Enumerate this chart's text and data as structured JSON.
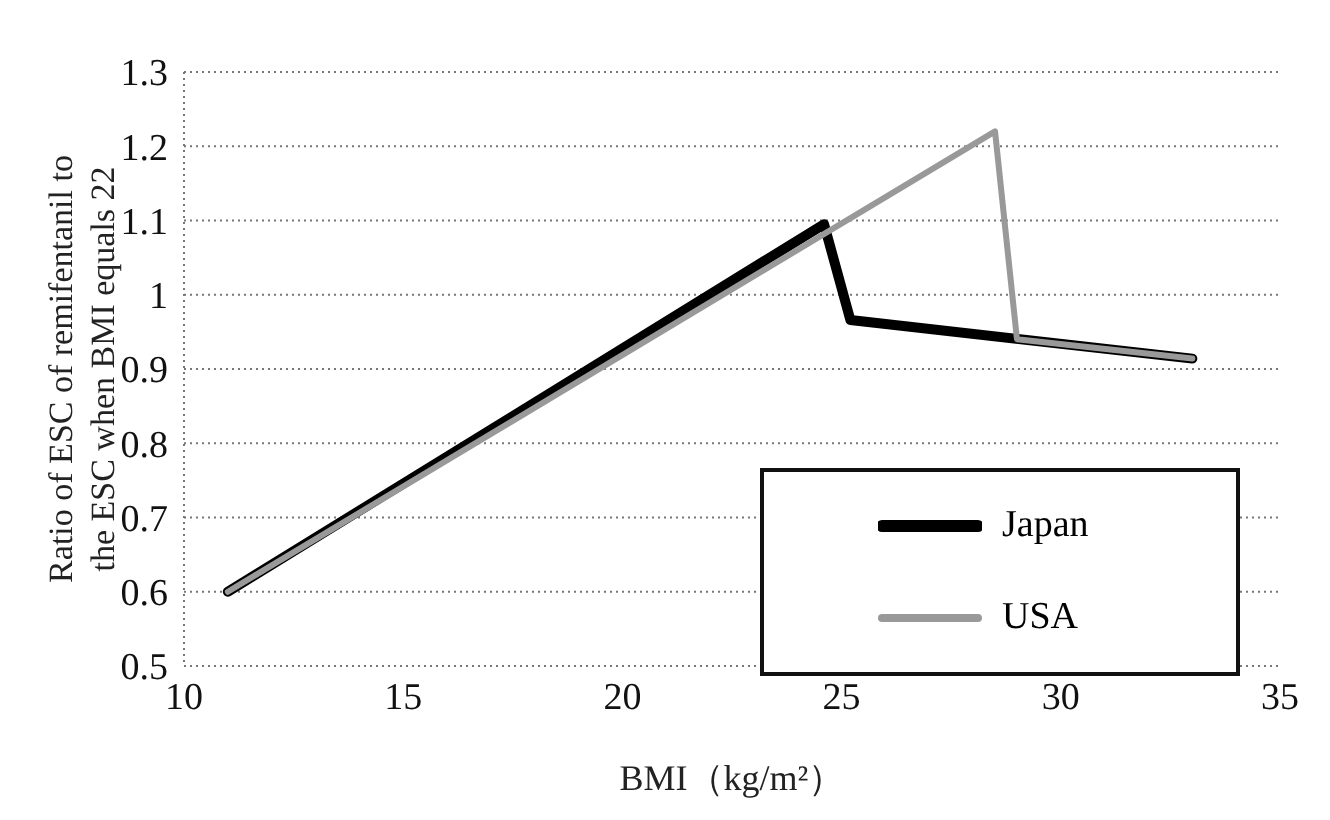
{
  "chart_data": {
    "type": "line",
    "xlabel": "BMI（kg/m²）",
    "ylabel": "Ratio of ESC of remifentanil to the ESC when BMI equals 22",
    "series": [
      {
        "name": "Japan",
        "color": "#000000",
        "x": [
          11,
          24.6,
          25.2,
          33
        ],
        "values": [
          0.6,
          1.095,
          0.966,
          0.914
        ]
      },
      {
        "name": "USA",
        "color": "#999999",
        "x": [
          11,
          28.5,
          29,
          33
        ],
        "values": [
          0.6,
          1.22,
          0.94,
          0.914
        ]
      }
    ],
    "xlim": [
      10,
      35
    ],
    "xticks": [
      10,
      15,
      20,
      25,
      30,
      35
    ],
    "ylim": [
      0.5,
      1.3
    ],
    "yticks": [
      0.5,
      0.6,
      0.7,
      0.8,
      0.9,
      1,
      1.1,
      1.2,
      1.3
    ],
    "grid": "y",
    "legend": "bottom right",
    "marker": "none",
    "line_style": "solid"
  }
}
